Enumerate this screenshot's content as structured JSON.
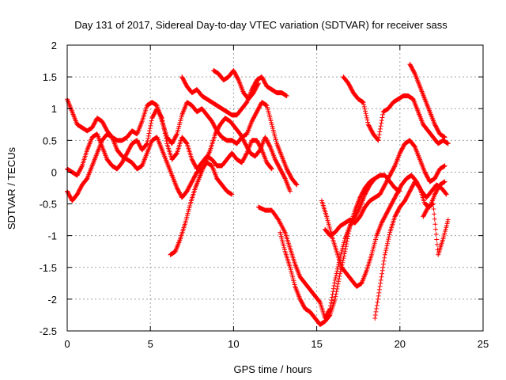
{
  "chart_data": {
    "type": "scatter",
    "title": "Day 131 of 2017, Sidereal Day-to-day VTEC variation (SDTVAR) for receiver sass",
    "xlabel": "GPS time / hours",
    "ylabel": "SDTVAR / TECUs",
    "xlim": [
      0,
      25
    ],
    "ylim": [
      -2.5,
      2
    ],
    "x_ticks": [
      "0",
      "5",
      "10",
      "15",
      "20",
      "25"
    ],
    "y_ticks": [
      "2",
      "1.5",
      "1",
      "0.5",
      "0",
      "-0.5",
      "-1",
      "-1.5",
      "-2",
      "-2.5"
    ],
    "grid": true,
    "marker": "+",
    "marker_color": "#ff0000",
    "series": [
      {
        "x": [
          0.0,
          0.3,
          0.6,
          0.9,
          1.2,
          1.5,
          1.8,
          2.1,
          2.4,
          2.7,
          3.0,
          3.3,
          3.6,
          3.9,
          4.2,
          4.5,
          4.8,
          5.1,
          5.4,
          5.7,
          6.0,
          6.3,
          6.6,
          6.9,
          7.2,
          7.5,
          7.8,
          8.1,
          8.4,
          8.7,
          9.0,
          9.3,
          9.6,
          9.9,
          10.2,
          10.5,
          10.8,
          11.1,
          11.4,
          11.7,
          12.0,
          12.3,
          12.6,
          12.9,
          13.2,
          13.5,
          13.8
        ],
        "y": [
          1.15,
          0.95,
          0.75,
          0.7,
          0.65,
          0.7,
          0.85,
          0.8,
          0.65,
          0.55,
          0.5,
          0.5,
          0.55,
          0.65,
          0.6,
          0.8,
          1.05,
          1.1,
          1.05,
          0.8,
          0.55,
          0.45,
          0.6,
          0.9,
          1.1,
          1.05,
          0.95,
          1.0,
          0.9,
          0.8,
          0.65,
          0.55,
          0.5,
          0.5,
          0.45,
          0.55,
          0.6,
          0.8,
          0.95,
          1.1,
          1.05,
          0.75,
          0.45,
          0.25,
          0.05,
          -0.1,
          -0.2
        ]
      },
      {
        "x": [
          0.0,
          0.3,
          0.6,
          0.9,
          1.2,
          1.5,
          1.8,
          2.1,
          2.4,
          2.7,
          3.0,
          3.3,
          3.6,
          3.9,
          4.2,
          4.5,
          4.8,
          5.1,
          5.4,
          5.7,
          6.0,
          6.3,
          6.6,
          6.9,
          7.2,
          7.5,
          7.8,
          8.1,
          8.4,
          8.7,
          9.0,
          9.3,
          9.6,
          9.9,
          10.2,
          10.5,
          10.8,
          11.1,
          11.4,
          11.7,
          12.0,
          12.3
        ],
        "y": [
          0.05,
          0.0,
          -0.05,
          0.1,
          0.35,
          0.55,
          0.6,
          0.4,
          0.2,
          0.1,
          0.05,
          0.15,
          0.3,
          0.45,
          0.5,
          0.35,
          0.45,
          0.85,
          1.0,
          0.85,
          0.45,
          0.2,
          0.3,
          0.55,
          0.45,
          0.2,
          0.05,
          0.15,
          0.25,
          0.2,
          0.1,
          0.1,
          0.2,
          0.3,
          0.2,
          0.15,
          0.3,
          0.5,
          0.5,
          0.35,
          0.15,
          0.05
        ]
      },
      {
        "x": [
          0.0,
          0.3,
          0.6,
          0.9,
          1.2,
          1.5,
          1.8,
          2.1,
          2.4,
          2.7,
          3.0,
          3.3,
          3.6,
          3.9,
          4.2,
          4.5,
          4.8,
          5.1,
          5.4,
          5.7,
          6.0,
          6.3,
          6.6,
          6.9,
          7.2,
          7.5,
          7.8,
          8.1,
          8.4,
          8.7,
          9.0,
          9.3,
          9.6,
          9.9
        ],
        "y": [
          -0.3,
          -0.45,
          -0.35,
          -0.2,
          -0.1,
          0.1,
          0.3,
          0.5,
          0.6,
          0.55,
          0.35,
          0.25,
          0.2,
          0.15,
          0.05,
          0.1,
          0.3,
          0.5,
          0.55,
          0.35,
          0.15,
          -0.05,
          -0.25,
          -0.4,
          -0.3,
          -0.15,
          0.0,
          0.05,
          0.15,
          0.1,
          -0.1,
          -0.2,
          -0.3,
          -0.35
        ]
      },
      {
        "x": [
          6.2,
          6.5,
          6.8,
          7.1,
          7.4,
          7.7,
          8.0,
          8.3,
          8.6,
          8.9,
          9.2,
          9.5,
          9.8,
          10.1,
          10.4,
          10.7,
          11.0,
          11.3,
          11.6,
          11.9,
          12.2,
          12.5,
          12.8,
          13.1,
          13.4
        ],
        "y": [
          -1.3,
          -1.25,
          -1.05,
          -0.8,
          -0.5,
          -0.25,
          -0.05,
          0.15,
          0.35,
          0.6,
          0.75,
          0.85,
          0.8,
          0.7,
          0.6,
          0.45,
          0.3,
          0.25,
          0.35,
          0.55,
          0.4,
          0.2,
          0.05,
          -0.1,
          -0.3
        ]
      },
      {
        "x": [
          6.9,
          7.2,
          7.5,
          7.8,
          8.1,
          8.4,
          8.7,
          9.0,
          9.3,
          9.6,
          9.9,
          10.2,
          10.5,
          10.8,
          11.1,
          11.4,
          11.7,
          12.0,
          12.3,
          12.6,
          12.9,
          13.2
        ],
        "y": [
          1.5,
          1.35,
          1.25,
          1.3,
          1.2,
          1.15,
          1.1,
          1.05,
          1.0,
          0.95,
          0.9,
          0.9,
          1.0,
          1.1,
          1.3,
          1.45,
          1.5,
          1.35,
          1.3,
          1.25,
          1.25,
          1.2
        ]
      },
      {
        "x": [
          8.8,
          9.1,
          9.4,
          9.7,
          10.0,
          10.3,
          10.6,
          10.9,
          11.2,
          11.5
        ],
        "y": [
          1.6,
          1.55,
          1.45,
          1.5,
          1.6,
          1.45,
          1.25,
          1.15,
          1.25,
          1.4
        ]
      },
      {
        "x": [
          11.5,
          11.9,
          12.3,
          12.7,
          13.1,
          13.4,
          13.7,
          14.0,
          14.3,
          14.6,
          14.9,
          15.2,
          15.5,
          15.8,
          16.1,
          16.4,
          16.7,
          17.0,
          17.3,
          17.6,
          17.9,
          18.2,
          18.5,
          18.8,
          19.1,
          19.4,
          19.7,
          20.0
        ],
        "y": [
          -0.55,
          -0.6,
          -0.6,
          -0.75,
          -0.95,
          -1.2,
          -1.45,
          -1.65,
          -1.75,
          -1.85,
          -1.95,
          -2.05,
          -2.3,
          -2.15,
          -1.7,
          -1.35,
          -1.05,
          -0.85,
          -0.7,
          -0.55,
          -0.35,
          -0.2,
          -0.1,
          -0.05,
          -0.05,
          -0.15,
          -0.25,
          -0.3
        ]
      },
      {
        "x": [
          12.8,
          13.1,
          13.4,
          13.7,
          14.0,
          14.3,
          14.6,
          14.9,
          15.2,
          15.5,
          15.8,
          16.1,
          16.4,
          16.7,
          17.0,
          17.3,
          17.6,
          17.9,
          18.2,
          18.5
        ],
        "y": [
          -0.95,
          -1.25,
          -1.5,
          -1.8,
          -2.0,
          -2.15,
          -2.2,
          -2.3,
          -2.4,
          -2.35,
          -2.25,
          -2.0,
          -1.6,
          -1.25,
          -0.85,
          -0.6,
          -0.4,
          -0.25,
          -0.15,
          -0.1
        ]
      },
      {
        "x": [
          15.3,
          15.6,
          15.9,
          16.2,
          16.5,
          16.8,
          17.1,
          17.4,
          17.7,
          18.0,
          18.3,
          18.6,
          18.9,
          19.2,
          19.5,
          19.8,
          20.1,
          20.4,
          20.7,
          21.0,
          21.3,
          21.6,
          21.9,
          22.2,
          22.5,
          22.8
        ],
        "y": [
          -0.45,
          -0.7,
          -1.0,
          -1.25,
          -1.5,
          -1.6,
          -1.7,
          -1.8,
          -1.75,
          -1.55,
          -1.3,
          -1.0,
          -0.8,
          -0.65,
          -0.5,
          -0.35,
          -0.2,
          -0.1,
          -0.05,
          -0.15,
          -0.3,
          -0.4,
          -0.3,
          -0.2,
          -0.25,
          -0.35
        ]
      },
      {
        "x": [
          15.5,
          15.8,
          16.1,
          16.4,
          16.7,
          17.0,
          17.3,
          17.6,
          17.9,
          18.2,
          18.5,
          18.8,
          19.1,
          19.4,
          19.7,
          20.0,
          20.3,
          20.6,
          20.9,
          21.2,
          21.5,
          21.8,
          22.1,
          22.4,
          22.7
        ],
        "y": [
          -0.9,
          -1.0,
          -0.95,
          -0.85,
          -0.8,
          -0.75,
          -0.8,
          -0.7,
          -0.55,
          -0.45,
          -0.4,
          -0.35,
          -0.2,
          -0.05,
          0.1,
          0.3,
          0.45,
          0.5,
          0.4,
          0.2,
          0.0,
          -0.15,
          -0.1,
          0.05,
          0.1
        ]
      },
      {
        "x": [
          16.6,
          16.9,
          17.2,
          17.5,
          17.8,
          18.1,
          18.4,
          18.7,
          19.0,
          19.3,
          19.6,
          19.9,
          20.2,
          20.5,
          20.8,
          21.1,
          21.4,
          21.7,
          22.0,
          22.3,
          22.6,
          22.9
        ],
        "y": [
          1.5,
          1.4,
          1.25,
          1.15,
          1.1,
          0.75,
          0.6,
          0.5,
          0.95,
          1.0,
          1.1,
          1.15,
          1.2,
          1.2,
          1.15,
          0.95,
          0.75,
          0.65,
          0.55,
          0.45,
          0.5,
          0.45
        ]
      },
      {
        "x": [
          20.6,
          20.9,
          21.2,
          21.5,
          21.8,
          22.1,
          22.4,
          22.7
        ],
        "y": [
          1.7,
          1.55,
          1.35,
          1.15,
          0.95,
          0.75,
          0.6,
          0.55
        ]
      },
      {
        "x": [
          18.5,
          18.8,
          19.1,
          19.4,
          19.7,
          20.0,
          20.3,
          20.6,
          20.9,
          21.2,
          21.5,
          21.8,
          22.1,
          22.4,
          22.7
        ],
        "y": [
          -2.3,
          -1.8,
          -1.3,
          -0.95,
          -0.7,
          -0.55,
          -0.45,
          -0.3,
          -0.15,
          -0.25,
          -0.5,
          -0.55,
          -0.35,
          -0.2,
          -0.15
        ]
      },
      {
        "x": [
          21.4,
          21.7,
          22.0,
          22.3,
          22.6,
          22.9
        ],
        "y": [
          -0.7,
          -0.55,
          -0.5,
          -1.3,
          -1.05,
          -0.75
        ]
      }
    ]
  }
}
